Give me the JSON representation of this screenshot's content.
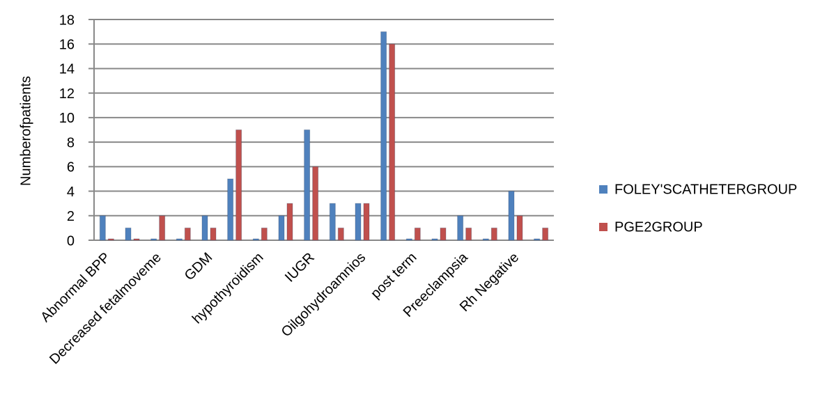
{
  "chart_data": {
    "type": "bar",
    "y_label": "Numberofpatients",
    "categories": [
      "Abnormal BPP",
      null,
      "Decreased fetalmoveme",
      null,
      "GDM",
      null,
      "hypothyroidism",
      null,
      "IUGR",
      null,
      "Oilgohydroamnios",
      null,
      "post term",
      null,
      "Preeclampsia",
      null,
      "Rh Negative",
      null
    ],
    "series": [
      {
        "name": "FOLEY'SCATHETERGROUP",
        "color": "#4f81bd",
        "values": [
          2,
          1,
          0,
          0,
          2,
          5,
          0,
          2,
          9,
          3,
          3,
          17,
          0,
          0,
          2,
          0,
          4,
          0
        ]
      },
      {
        "name": "PGE2GROUP",
        "color": "#c0504d",
        "values": [
          0,
          0,
          2,
          1,
          1,
          9,
          1,
          3,
          6,
          1,
          3,
          16,
          1,
          1,
          1,
          1,
          2,
          1
        ]
      }
    ],
    "ylim": [
      0,
      18
    ],
    "yticks": [
      0,
      2,
      4,
      6,
      8,
      10,
      12,
      14,
      16,
      18
    ],
    "grid": true,
    "legend": "right"
  }
}
